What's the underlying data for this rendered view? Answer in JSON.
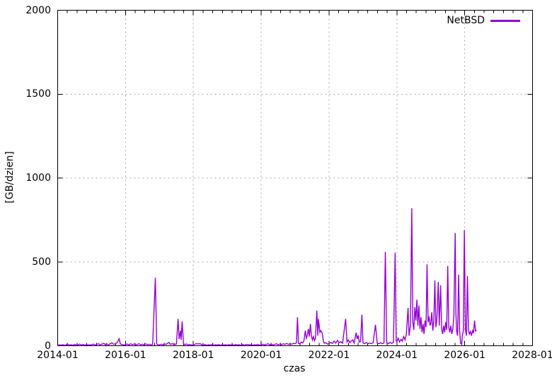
{
  "chart_data": {
    "type": "line",
    "title": "",
    "xlabel": "czas",
    "ylabel": "[GB/dzien]",
    "xlim_decimal_years": [
      2014.0,
      2028.0
    ],
    "ylim": [
      0,
      2000
    ],
    "x_tick_labels": [
      "2014-01",
      "2016-01",
      "2018-01",
      "2020-01",
      "2022-01",
      "2024-01",
      "2026-01",
      "2028-01"
    ],
    "x_tick_years": [
      2014,
      2016,
      2018,
      2020,
      2022,
      2024,
      2026,
      2028
    ],
    "x_minor_divisions_per_major": 7,
    "y_ticks": [
      0,
      500,
      1000,
      1500,
      2000
    ],
    "grid": true,
    "legend_position": "top-right-inside",
    "colors": {
      "series": "#9400d3",
      "grid": "#a8a8a8",
      "axis": "#000000",
      "text": "#000000"
    },
    "series": [
      {
        "name": "NetBSD",
        "color": "#9400d3",
        "points_decimal_year_gb_per_day": [
          [
            2014.0,
            2
          ],
          [
            2014.05,
            6
          ],
          [
            2014.1,
            3
          ],
          [
            2014.15,
            7
          ],
          [
            2014.2,
            3
          ],
          [
            2014.25,
            5
          ],
          [
            2014.3,
            9
          ],
          [
            2014.35,
            4
          ],
          [
            2014.4,
            6
          ],
          [
            2014.45,
            3
          ],
          [
            2014.5,
            8
          ],
          [
            2014.55,
            4
          ],
          [
            2014.6,
            5
          ],
          [
            2014.65,
            10
          ],
          [
            2014.7,
            4
          ],
          [
            2014.75,
            8
          ],
          [
            2014.8,
            3
          ],
          [
            2014.85,
            7
          ],
          [
            2014.9,
            4
          ],
          [
            2014.95,
            6
          ],
          [
            2015.0,
            5
          ],
          [
            2015.05,
            10
          ],
          [
            2015.1,
            4
          ],
          [
            2015.15,
            8
          ],
          [
            2015.2,
            12
          ],
          [
            2015.25,
            5
          ],
          [
            2015.3,
            9
          ],
          [
            2015.36,
            15
          ],
          [
            2015.4,
            6
          ],
          [
            2015.45,
            10
          ],
          [
            2015.5,
            5
          ],
          [
            2015.55,
            12
          ],
          [
            2015.6,
            18
          ],
          [
            2015.65,
            8
          ],
          [
            2015.7,
            12
          ],
          [
            2015.76,
            20
          ],
          [
            2015.81,
            42
          ],
          [
            2015.85,
            10
          ],
          [
            2015.9,
            7
          ],
          [
            2015.95,
            5
          ],
          [
            2016.0,
            6
          ],
          [
            2016.05,
            10
          ],
          [
            2016.1,
            5
          ],
          [
            2016.15,
            12
          ],
          [
            2016.2,
            7
          ],
          [
            2016.25,
            10
          ],
          [
            2016.3,
            5
          ],
          [
            2016.35,
            8
          ],
          [
            2016.4,
            12
          ],
          [
            2016.45,
            6
          ],
          [
            2016.5,
            9
          ],
          [
            2016.55,
            5
          ],
          [
            2016.6,
            11
          ],
          [
            2016.65,
            6
          ],
          [
            2016.7,
            9
          ],
          [
            2016.75,
            5
          ],
          [
            2016.8,
            8
          ],
          [
            2016.88,
            405
          ],
          [
            2016.92,
            10
          ],
          [
            2016.96,
            6
          ],
          [
            2017.0,
            5
          ],
          [
            2017.05,
            9
          ],
          [
            2017.1,
            6
          ],
          [
            2017.15,
            11
          ],
          [
            2017.2,
            8
          ],
          [
            2017.28,
            20
          ],
          [
            2017.32,
            8
          ],
          [
            2017.38,
            12
          ],
          [
            2017.44,
            7
          ],
          [
            2017.5,
            10
          ],
          [
            2017.55,
            160
          ],
          [
            2017.58,
            40
          ],
          [
            2017.62,
            90
          ],
          [
            2017.64,
            35
          ],
          [
            2017.67,
            145
          ],
          [
            2017.71,
            12
          ],
          [
            2017.75,
            7
          ],
          [
            2017.8,
            10
          ],
          [
            2017.85,
            5
          ],
          [
            2017.9,
            8
          ],
          [
            2017.95,
            4
          ],
          [
            2018.0,
            4
          ],
          [
            2018.05,
            10
          ],
          [
            2018.1,
            12
          ],
          [
            2018.15,
            11
          ],
          [
            2018.2,
            12
          ],
          [
            2018.25,
            6
          ],
          [
            2018.3,
            4
          ],
          [
            2018.35,
            7
          ],
          [
            2018.4,
            3
          ],
          [
            2018.45,
            6
          ],
          [
            2018.5,
            4
          ],
          [
            2018.55,
            8
          ],
          [
            2018.6,
            3
          ],
          [
            2018.65,
            6
          ],
          [
            2018.7,
            4
          ],
          [
            2018.75,
            7
          ],
          [
            2018.8,
            3
          ],
          [
            2018.85,
            6
          ],
          [
            2018.9,
            4
          ],
          [
            2018.95,
            6
          ],
          [
            2019.0,
            3
          ],
          [
            2019.05,
            7
          ],
          [
            2019.1,
            4
          ],
          [
            2019.15,
            6
          ],
          [
            2019.2,
            3
          ],
          [
            2019.25,
            8
          ],
          [
            2019.3,
            4
          ],
          [
            2019.35,
            6
          ],
          [
            2019.4,
            3
          ],
          [
            2019.45,
            7
          ],
          [
            2019.5,
            4
          ],
          [
            2019.55,
            6
          ],
          [
            2019.6,
            8
          ],
          [
            2019.65,
            4
          ],
          [
            2019.7,
            7
          ],
          [
            2019.75,
            3
          ],
          [
            2019.8,
            6
          ],
          [
            2019.85,
            4
          ],
          [
            2019.9,
            8
          ],
          [
            2019.95,
            4
          ],
          [
            2020.0,
            5
          ],
          [
            2020.05,
            9
          ],
          [
            2020.1,
            5
          ],
          [
            2020.15,
            8
          ],
          [
            2020.2,
            12
          ],
          [
            2020.25,
            6
          ],
          [
            2020.3,
            9
          ],
          [
            2020.35,
            5
          ],
          [
            2020.4,
            8
          ],
          [
            2020.45,
            12
          ],
          [
            2020.5,
            6
          ],
          [
            2020.55,
            10
          ],
          [
            2020.6,
            6
          ],
          [
            2020.65,
            12
          ],
          [
            2020.7,
            8
          ],
          [
            2020.75,
            14
          ],
          [
            2020.8,
            8
          ],
          [
            2020.85,
            12
          ],
          [
            2020.9,
            9
          ],
          [
            2020.95,
            14
          ],
          [
            2021.0,
            12
          ],
          [
            2021.04,
            18
          ],
          [
            2021.07,
            170
          ],
          [
            2021.1,
            14
          ],
          [
            2021.14,
            10
          ],
          [
            2021.18,
            22
          ],
          [
            2021.22,
            16
          ],
          [
            2021.26,
            30
          ],
          [
            2021.3,
            90
          ],
          [
            2021.33,
            45
          ],
          [
            2021.36,
            60
          ],
          [
            2021.39,
            100
          ],
          [
            2021.42,
            55
          ],
          [
            2021.45,
            130
          ],
          [
            2021.48,
            60
          ],
          [
            2021.51,
            35
          ],
          [
            2021.54,
            55
          ],
          [
            2021.57,
            30
          ],
          [
            2021.6,
            45
          ],
          [
            2021.64,
            210
          ],
          [
            2021.67,
            60
          ],
          [
            2021.69,
            160
          ],
          [
            2021.73,
            80
          ],
          [
            2021.76,
            90
          ],
          [
            2021.8,
            75
          ],
          [
            2021.83,
            30
          ],
          [
            2021.86,
            15
          ],
          [
            2021.9,
            18
          ],
          [
            2021.95,
            10
          ],
          [
            2022.0,
            12
          ],
          [
            2022.05,
            20
          ],
          [
            2022.1,
            14
          ],
          [
            2022.15,
            28
          ],
          [
            2022.2,
            16
          ],
          [
            2022.25,
            32
          ],
          [
            2022.3,
            18
          ],
          [
            2022.35,
            24
          ],
          [
            2022.4,
            15
          ],
          [
            2022.49,
            160
          ],
          [
            2022.53,
            22
          ],
          [
            2022.57,
            35
          ],
          [
            2022.61,
            18
          ],
          [
            2022.65,
            28
          ],
          [
            2022.7,
            35
          ],
          [
            2022.74,
            16
          ],
          [
            2022.8,
            78
          ],
          [
            2022.83,
            40
          ],
          [
            2022.86,
            62
          ],
          [
            2022.89,
            22
          ],
          [
            2022.93,
            25
          ],
          [
            2022.97,
            185
          ],
          [
            2023.0,
            18
          ],
          [
            2023.05,
            12
          ],
          [
            2023.1,
            20
          ],
          [
            2023.15,
            12
          ],
          [
            2023.2,
            16
          ],
          [
            2023.25,
            12
          ],
          [
            2023.3,
            18
          ],
          [
            2023.37,
            125
          ],
          [
            2023.42,
            16
          ],
          [
            2023.47,
            12
          ],
          [
            2023.52,
            18
          ],
          [
            2023.57,
            12
          ],
          [
            2023.62,
            16
          ],
          [
            2023.66,
            560
          ],
          [
            2023.7,
            18
          ],
          [
            2023.75,
            12
          ],
          [
            2023.8,
            20
          ],
          [
            2023.85,
            14
          ],
          [
            2023.9,
            22
          ],
          [
            2023.95,
            555
          ],
          [
            2023.98,
            28
          ],
          [
            2024.0,
            25
          ],
          [
            2024.04,
            45
          ],
          [
            2024.08,
            22
          ],
          [
            2024.12,
            38
          ],
          [
            2024.16,
            28
          ],
          [
            2024.2,
            55
          ],
          [
            2024.24,
            35
          ],
          [
            2024.28,
            70
          ],
          [
            2024.33,
            225
          ],
          [
            2024.36,
            60
          ],
          [
            2024.4,
            120
          ],
          [
            2024.44,
            820
          ],
          [
            2024.47,
            140
          ],
          [
            2024.5,
            95
          ],
          [
            2024.53,
            230
          ],
          [
            2024.56,
            150
          ],
          [
            2024.59,
            275
          ],
          [
            2024.62,
            120
          ],
          [
            2024.65,
            240
          ],
          [
            2024.68,
            100
          ],
          [
            2024.71,
            170
          ],
          [
            2024.74,
            80
          ],
          [
            2024.77,
            130
          ],
          [
            2024.8,
            70
          ],
          [
            2024.83,
            150
          ],
          [
            2024.86,
            110
          ],
          [
            2024.89,
            485
          ],
          [
            2024.92,
            140
          ],
          [
            2024.95,
            175
          ],
          [
            2024.98,
            120
          ],
          [
            2025.0,
            130
          ],
          [
            2025.03,
            200
          ],
          [
            2025.06,
            90
          ],
          [
            2025.09,
            150
          ],
          [
            2025.12,
            390
          ],
          [
            2025.15,
            110
          ],
          [
            2025.18,
            160
          ],
          [
            2025.22,
            380
          ],
          [
            2025.25,
            120
          ],
          [
            2025.29,
            360
          ],
          [
            2025.32,
            100
          ],
          [
            2025.35,
            70
          ],
          [
            2025.38,
            120
          ],
          [
            2025.41,
            80
          ],
          [
            2025.44,
            140
          ],
          [
            2025.47,
            95
          ],
          [
            2025.5,
            475
          ],
          [
            2025.53,
            110
          ],
          [
            2025.56,
            80
          ],
          [
            2025.59,
            120
          ],
          [
            2025.62,
            70
          ],
          [
            2025.65,
            100
          ],
          [
            2025.68,
            180
          ],
          [
            2025.7,
            430
          ],
          [
            2025.72,
            672
          ],
          [
            2025.74,
            200
          ],
          [
            2025.76,
            90
          ],
          [
            2025.79,
            60
          ],
          [
            2025.82,
            424
          ],
          [
            2025.85,
            90
          ],
          [
            2025.88,
            15
          ],
          [
            2025.91,
            8
          ],
          [
            2025.93,
            60
          ],
          [
            2025.96,
            90
          ],
          [
            2025.99,
            690
          ],
          [
            2026.02,
            100
          ],
          [
            2026.05,
            60
          ],
          [
            2026.08,
            415
          ],
          [
            2026.11,
            90
          ],
          [
            2026.14,
            70
          ],
          [
            2026.17,
            85
          ],
          [
            2026.2,
            60
          ],
          [
            2026.23,
            90
          ],
          [
            2026.26,
            75
          ],
          [
            2026.29,
            150
          ],
          [
            2026.32,
            85
          ],
          [
            2026.34,
            95
          ]
        ]
      }
    ]
  }
}
